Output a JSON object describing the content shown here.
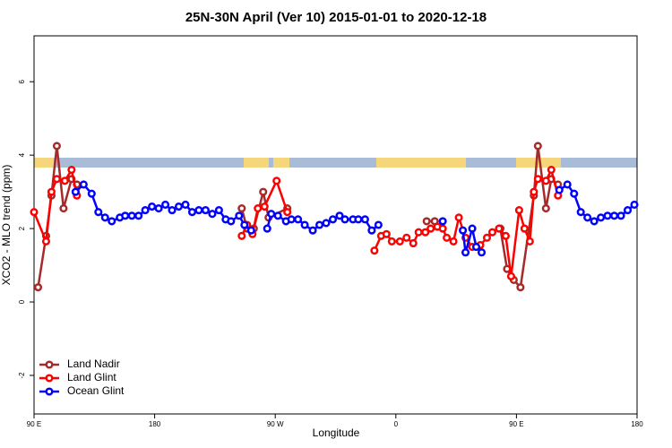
{
  "chart_data": {
    "type": "line",
    "title": "25N-30N April (Ver 10)   2015-01-01 to 2020-12-18",
    "x_label": "Longitude",
    "y_label": "XCO2 - MLO trend (ppm)",
    "xlim": [
      90,
      540
    ],
    "ylim": [
      -3.05,
      7.25
    ],
    "xticks": [
      {
        "value": 90,
        "label": "90 E"
      },
      180,
      {
        "value": 270,
        "label": "90 W"
      },
      {
        "value": 360,
        "label": "0"
      },
      {
        "value": 450,
        "label": "90 E"
      },
      {
        "value": 540,
        "label": "180"
      }
    ],
    "yticks": [
      -2,
      0,
      2,
      4,
      6
    ],
    "legend": "bottom-left",
    "series": [
      {
        "name": "Land Nadir",
        "color": "#a52a2a",
        "x": [
          93,
          99,
          103,
          107,
          112,
          118,
          122,
          null,
          245,
          249,
          254,
          261,
          265,
          279,
          null,
          383,
          389,
          null,
          438,
          443,
          448,
          453,
          463,
          466,
          472,
          476,
          481
        ],
        "values": [
          0.4,
          1.8,
          2.9,
          4.25,
          2.55,
          3.35,
          3.2,
          null,
          2.55,
          2.0,
          2.0,
          3.0,
          2.3,
          2.55,
          null,
          2.2,
          2.2,
          null,
          2.0,
          0.9,
          0.6,
          0.4,
          2.9,
          4.25,
          2.55,
          3.35,
          3.2
        ]
      },
      {
        "name": "Land Glint",
        "color": "#ff0000",
        "x": [
          90,
          99,
          103,
          107,
          113,
          118,
          122,
          null,
          245,
          249,
          253,
          257,
          262,
          271,
          279,
          null,
          344,
          349,
          353,
          357,
          363,
          368,
          373,
          377,
          382,
          386,
          391,
          395,
          398,
          403,
          407,
          412,
          417,
          423,
          428,
          432,
          437,
          442,
          446,
          452,
          456,
          460,
          463,
          466,
          472,
          476,
          481
        ],
        "values": [
          2.45,
          1.65,
          3.0,
          3.35,
          3.3,
          3.6,
          2.9,
          null,
          1.8,
          2.1,
          1.85,
          2.55,
          2.6,
          3.3,
          2.45,
          null,
          1.4,
          1.8,
          1.85,
          1.65,
          1.65,
          1.75,
          1.6,
          1.9,
          1.9,
          2.0,
          2.05,
          2.0,
          1.75,
          1.65,
          2.3,
          1.75,
          1.5,
          1.55,
          1.75,
          1.9,
          2.0,
          1.8,
          0.7,
          2.5,
          2.0,
          1.65,
          3.0,
          3.35,
          3.3,
          3.6,
          2.9
        ]
      },
      {
        "name": "Ocean Glint",
        "color": "#0000ff",
        "x": [
          121,
          127,
          133,
          138,
          143,
          148,
          154,
          158,
          163,
          168,
          173,
          178,
          183,
          188,
          193,
          198,
          203,
          208,
          213,
          218,
          223,
          228,
          233,
          237,
          243,
          247,
          252,
          null,
          264,
          267,
          272,
          278,
          282,
          287,
          292,
          298,
          303,
          308,
          313,
          318,
          322,
          328,
          332,
          337,
          342,
          347,
          null,
          395,
          null,
          410,
          412,
          417,
          420,
          424,
          null,
          482,
          488,
          493,
          498,
          503,
          508,
          513,
          518,
          523,
          528,
          533,
          538
        ],
        "values": [
          3.0,
          3.2,
          2.95,
          2.45,
          2.3,
          2.2,
          2.3,
          2.35,
          2.35,
          2.35,
          2.5,
          2.6,
          2.55,
          2.65,
          2.5,
          2.6,
          2.65,
          2.45,
          2.5,
          2.5,
          2.4,
          2.5,
          2.25,
          2.2,
          2.35,
          2.1,
          1.95,
          null,
          2.0,
          2.4,
          2.35,
          2.2,
          2.25,
          2.25,
          2.1,
          1.95,
          2.1,
          2.15,
          2.25,
          2.35,
          2.25,
          2.25,
          2.25,
          2.25,
          1.95,
          2.1,
          null,
          2.2,
          null,
          1.95,
          1.35,
          2.0,
          1.5,
          1.35,
          null,
          3.05,
          3.2,
          2.95,
          2.45,
          2.3,
          2.2,
          2.3,
          2.35,
          2.35,
          2.35,
          2.5,
          2.65
        ]
      }
    ]
  }
}
